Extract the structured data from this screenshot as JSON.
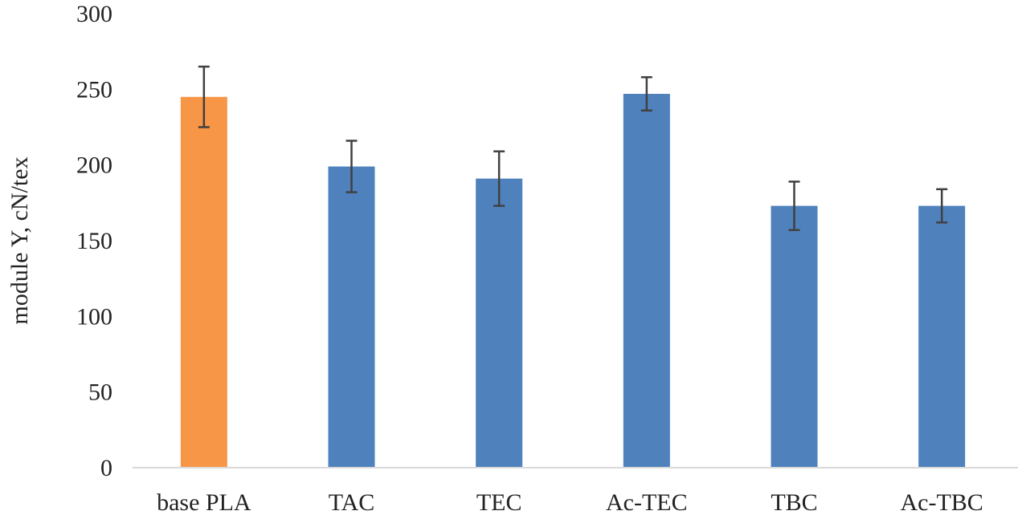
{
  "chart_data": {
    "type": "bar",
    "title": "",
    "xlabel": "",
    "ylabel": "module Y, cN/tex",
    "ylim": [
      0,
      300
    ],
    "yticks": [
      0,
      50,
      100,
      150,
      200,
      250,
      300
    ],
    "grid": false,
    "categories": [
      "base PLA",
      "TAC",
      "TEC",
      "Ac-TEC",
      "TBC",
      "Ac-TBC"
    ],
    "values": [
      245,
      199,
      191,
      247,
      173,
      173
    ],
    "errors": [
      20,
      17,
      18,
      11,
      16,
      11
    ],
    "colors": [
      "#F79646",
      "#4F81BD",
      "#4F81BD",
      "#4F81BD",
      "#4F81BD",
      "#4F81BD"
    ],
    "error_color": "#404040"
  }
}
